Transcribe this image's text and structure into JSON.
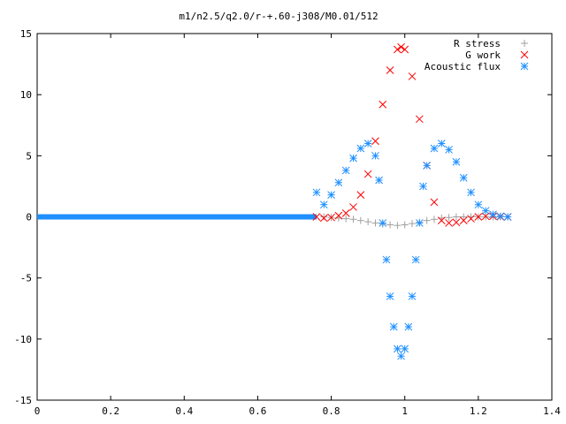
{
  "chart_data": {
    "type": "scatter",
    "title": "m1/n2.5/q2.0/r-+.60-j308/M0.01/512",
    "xlabel": "",
    "ylabel": "",
    "xlim": [
      0,
      1.4
    ],
    "ylim": [
      -15,
      15
    ],
    "x_ticks": [
      "0",
      "0.2",
      "0.4",
      "0.6",
      "0.8",
      "1",
      "1.2",
      "1.4"
    ],
    "y_ticks": [
      "15",
      "10",
      "5",
      "0",
      "-5",
      "-10",
      "-15"
    ],
    "grid": false,
    "legend_position": "top-right",
    "series": [
      {
        "name": "R stress",
        "marker": "plus",
        "color": "#a0a0a0",
        "x": [
          0.78,
          0.8,
          0.82,
          0.84,
          0.86,
          0.88,
          0.9,
          0.92,
          0.94,
          0.96,
          0.98,
          1.0,
          1.02,
          1.04,
          1.06,
          1.08,
          1.1,
          1.12,
          1.14,
          1.16,
          1.18,
          1.2,
          1.22,
          1.24,
          1.26,
          1.28
        ],
        "y": [
          0,
          -0.05,
          -0.1,
          -0.15,
          -0.2,
          -0.3,
          -0.4,
          -0.5,
          -0.6,
          -0.65,
          -0.7,
          -0.65,
          -0.55,
          -0.45,
          -0.3,
          -0.2,
          -0.1,
          -0.05,
          0,
          0,
          0,
          0,
          0,
          0,
          0,
          0
        ]
      },
      {
        "name": "G work",
        "marker": "cross",
        "color": "#ff0000",
        "x": [
          0.76,
          0.78,
          0.8,
          0.82,
          0.84,
          0.86,
          0.88,
          0.9,
          0.92,
          0.94,
          0.96,
          0.98,
          0.99,
          1.0,
          1.02,
          1.04,
          1.06,
          1.08,
          1.1,
          1.12,
          1.14,
          1.16,
          1.18,
          1.2,
          1.22,
          1.24,
          1.26,
          1.28
        ],
        "y": [
          0,
          -0.1,
          -0.05,
          0.1,
          0.3,
          0.8,
          1.8,
          3.5,
          6.2,
          9.2,
          12.0,
          13.7,
          13.9,
          13.7,
          11.5,
          8.0,
          4.2,
          1.2,
          -0.3,
          -0.5,
          -0.45,
          -0.3,
          -0.15,
          0,
          0.05,
          0.05,
          0.02,
          0
        ]
      },
      {
        "name": "Acoustic flux",
        "marker": "star",
        "color": "#1e90ff",
        "x": [
          0.76,
          0.78,
          0.8,
          0.82,
          0.84,
          0.86,
          0.88,
          0.9,
          0.92,
          0.93,
          0.94,
          0.95,
          0.96,
          0.97,
          0.98,
          0.99,
          1.0,
          1.01,
          1.02,
          1.03,
          1.04,
          1.05,
          1.06,
          1.08,
          1.1,
          1.12,
          1.14,
          1.16,
          1.18,
          1.2,
          1.22,
          1.24,
          1.26,
          1.28
        ],
        "y": [
          2.0,
          1.0,
          1.8,
          2.8,
          3.8,
          4.8,
          5.6,
          6.0,
          5.0,
          3.0,
          -0.5,
          -3.5,
          -6.5,
          -9.0,
          -10.8,
          -11.4,
          -10.8,
          -9.0,
          -6.5,
          -3.5,
          -0.5,
          2.5,
          4.2,
          5.6,
          6.0,
          5.5,
          4.5,
          3.2,
          2.0,
          1.0,
          0.5,
          0.2,
          0.05,
          0
        ]
      }
    ]
  }
}
